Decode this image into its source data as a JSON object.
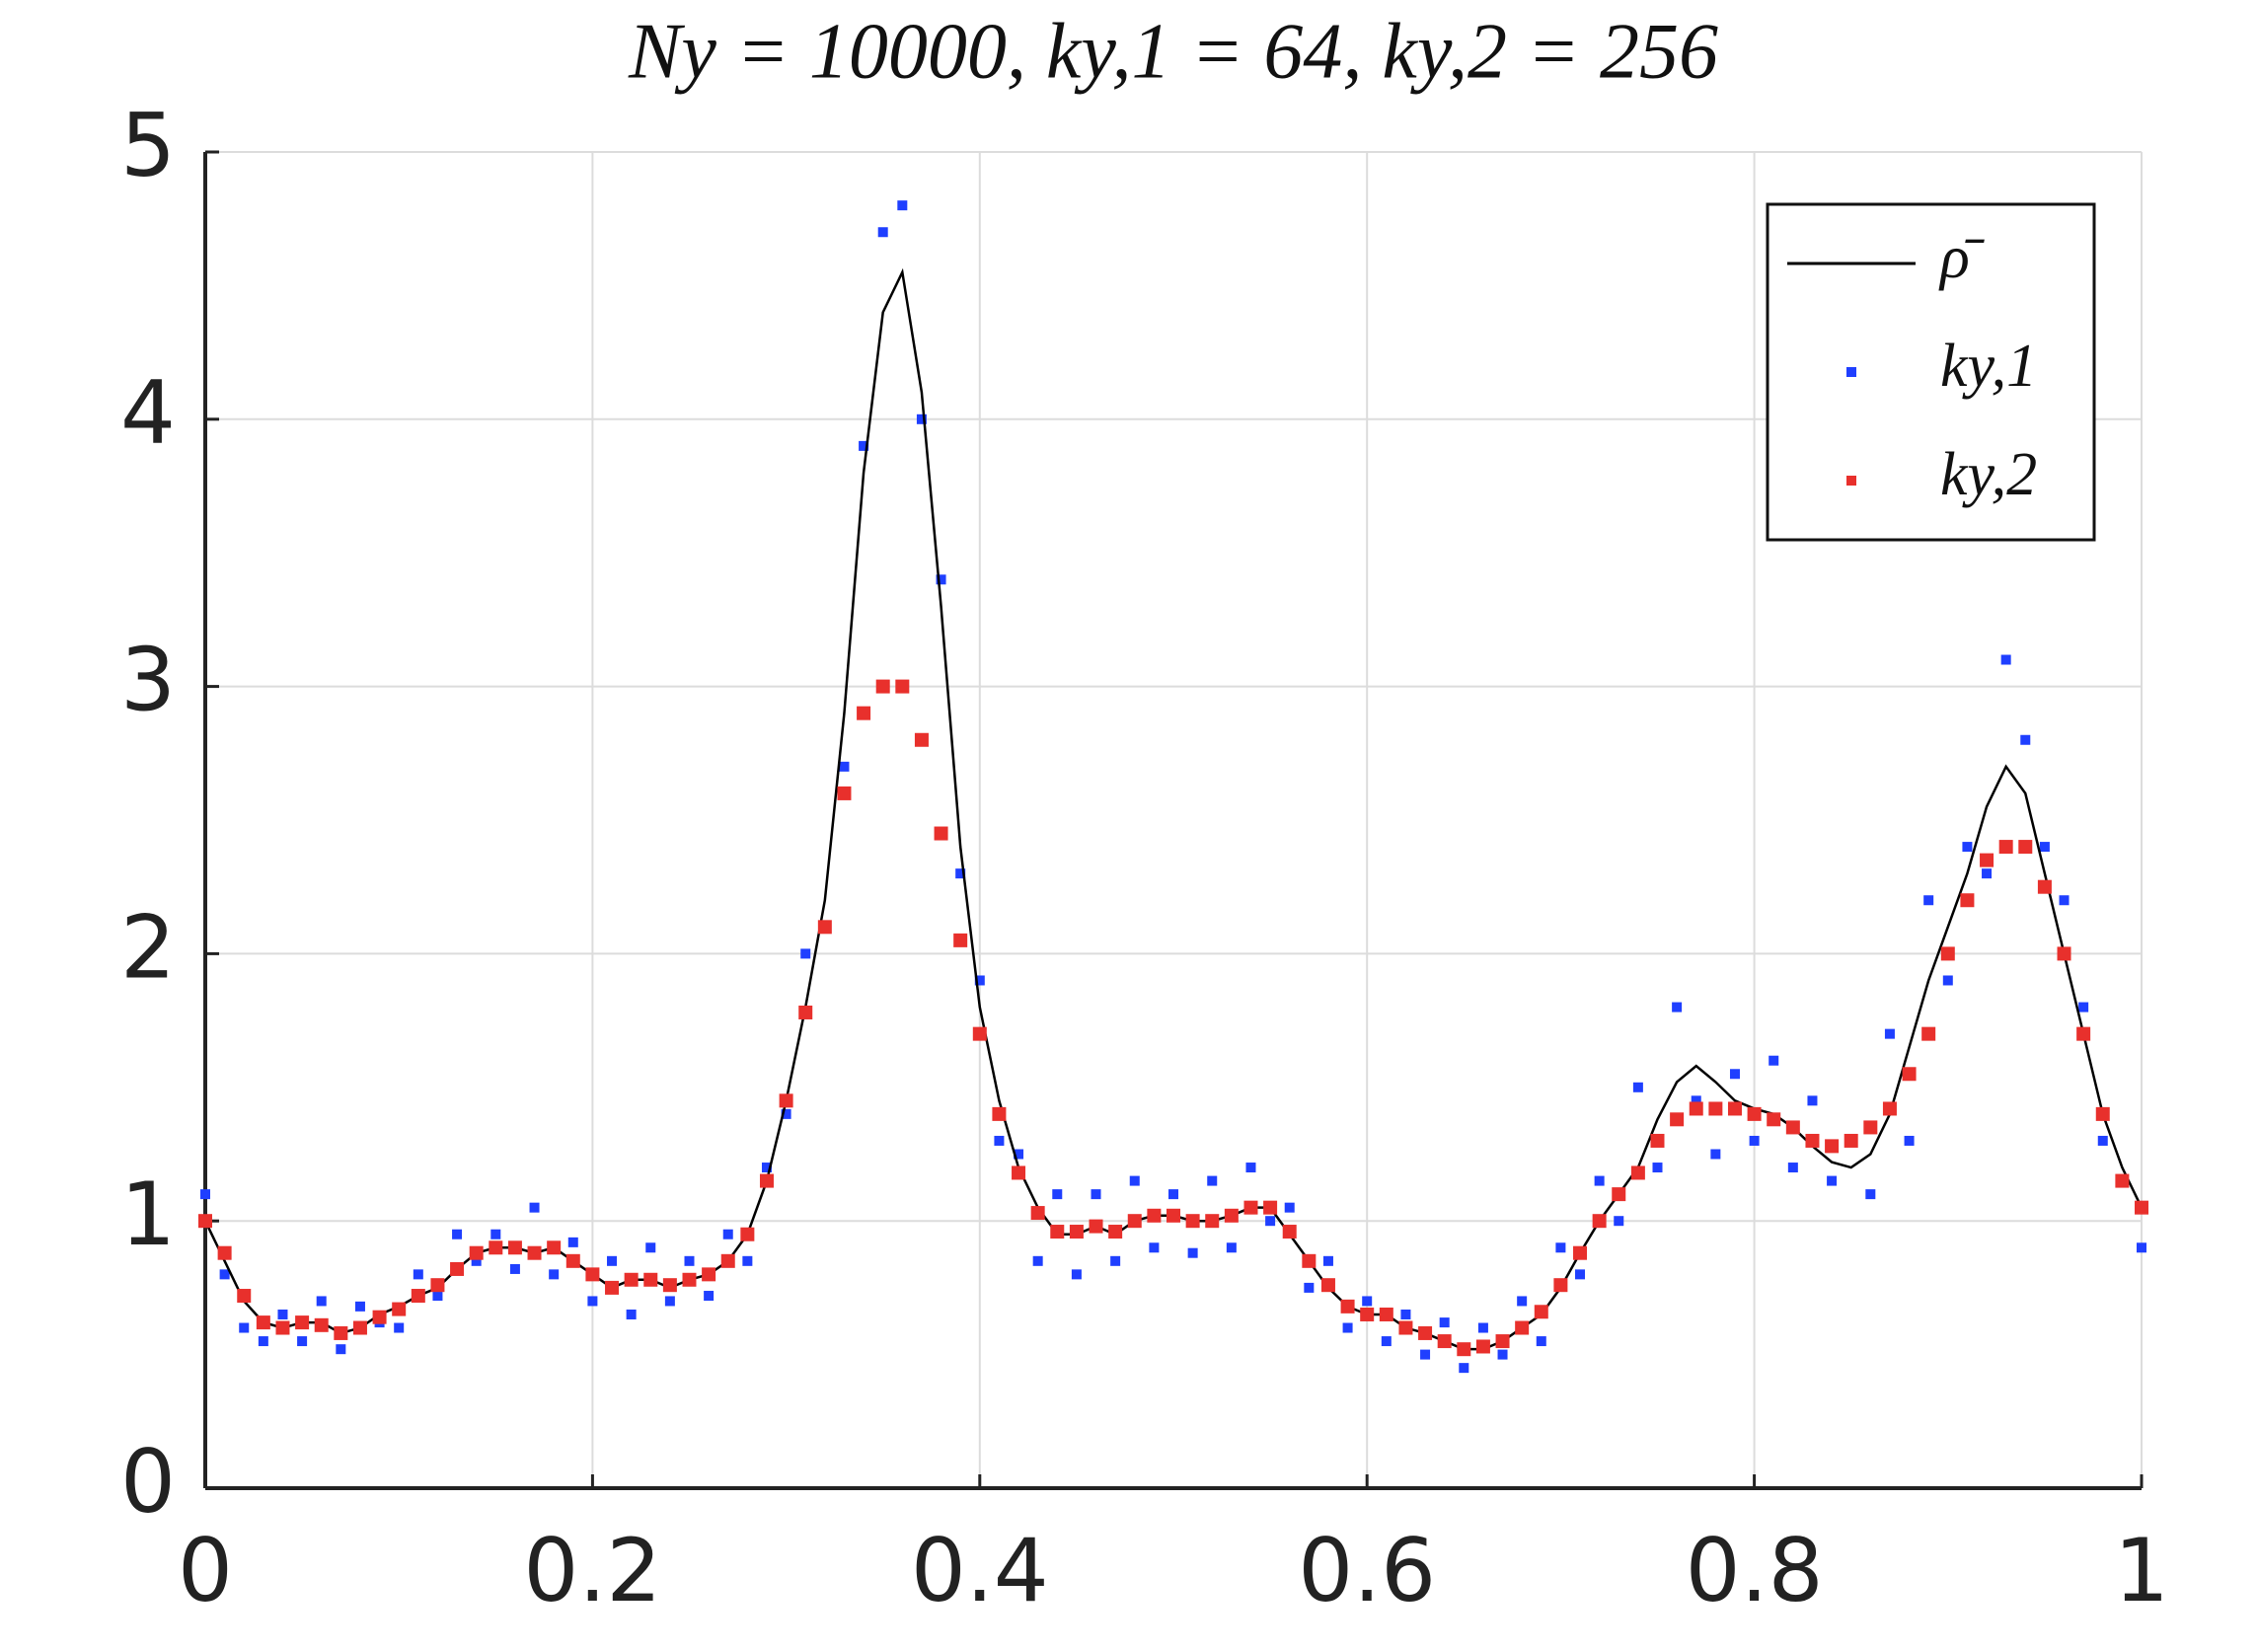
{
  "chart_data": {
    "type": "scatter",
    "title": "Ny = 10000, ky,1 = 64, ky,2 = 256",
    "x": [
      0,
      0.01,
      0.02,
      0.03,
      0.04,
      0.05,
      0.06,
      0.07,
      0.08,
      0.09,
      0.1,
      0.11,
      0.12,
      0.13,
      0.14,
      0.15,
      0.16,
      0.17,
      0.18,
      0.19,
      0.2,
      0.21,
      0.22,
      0.23,
      0.24,
      0.25,
      0.26,
      0.27,
      0.28,
      0.29,
      0.3,
      0.31,
      0.32,
      0.33,
      0.34,
      0.35,
      0.36,
      0.37,
      0.38,
      0.39,
      0.4,
      0.41,
      0.42,
      0.43,
      0.44,
      0.45,
      0.46,
      0.47,
      0.48,
      0.49,
      0.5,
      0.51,
      0.52,
      0.53,
      0.54,
      0.55,
      0.56,
      0.57,
      0.58,
      0.59,
      0.6,
      0.61,
      0.62,
      0.63,
      0.64,
      0.65,
      0.66,
      0.67,
      0.68,
      0.69,
      0.7,
      0.71,
      0.72,
      0.73,
      0.74,
      0.75,
      0.76,
      0.77,
      0.78,
      0.79,
      0.8,
      0.81,
      0.82,
      0.83,
      0.84,
      0.85,
      0.86,
      0.87,
      0.88,
      0.89,
      0.9,
      0.91,
      0.92,
      0.93,
      0.94,
      0.95,
      0.96,
      0.97,
      0.98,
      0.99,
      1
    ],
    "series": [
      {
        "name": "ρ̄",
        "color": "#000000",
        "style": "line",
        "values": [
          1.0,
          0.85,
          0.7,
          0.62,
          0.6,
          0.62,
          0.62,
          0.58,
          0.6,
          0.65,
          0.68,
          0.72,
          0.75,
          0.82,
          0.88,
          0.9,
          0.9,
          0.88,
          0.9,
          0.85,
          0.8,
          0.75,
          0.78,
          0.78,
          0.75,
          0.78,
          0.8,
          0.85,
          0.95,
          1.15,
          1.45,
          1.8,
          2.2,
          2.9,
          3.8,
          4.4,
          4.55,
          4.1,
          3.3,
          2.4,
          1.8,
          1.45,
          1.2,
          1.05,
          0.95,
          0.95,
          0.98,
          0.95,
          1.0,
          1.02,
          1.02,
          1.0,
          1.0,
          1.02,
          1.05,
          1.05,
          0.95,
          0.85,
          0.75,
          0.68,
          0.65,
          0.65,
          0.6,
          0.58,
          0.55,
          0.52,
          0.52,
          0.55,
          0.6,
          0.65,
          0.75,
          0.88,
          1.0,
          1.1,
          1.2,
          1.38,
          1.52,
          1.58,
          1.52,
          1.45,
          1.42,
          1.4,
          1.35,
          1.28,
          1.22,
          1.2,
          1.25,
          1.4,
          1.65,
          1.9,
          2.1,
          2.3,
          2.55,
          2.7,
          2.6,
          2.3,
          2.0,
          1.7,
          1.4,
          1.2,
          1.05
        ]
      },
      {
        "name": "ky,1",
        "color": "#1f3fff",
        "style": "points",
        "values": [
          1.1,
          0.8,
          0.6,
          0.55,
          0.65,
          0.55,
          0.7,
          0.52,
          0.68,
          0.62,
          0.6,
          0.8,
          0.72,
          0.95,
          0.85,
          0.95,
          0.82,
          1.05,
          0.8,
          0.92,
          0.7,
          0.85,
          0.65,
          0.9,
          0.7,
          0.85,
          0.72,
          0.95,
          0.85,
          1.2,
          1.4,
          2.0,
          2.1,
          2.7,
          3.9,
          4.7,
          4.8,
          4.0,
          3.4,
          2.3,
          1.9,
          1.3,
          1.25,
          0.85,
          1.1,
          0.8,
          1.1,
          0.85,
          1.15,
          0.9,
          1.1,
          0.88,
          1.15,
          0.9,
          1.2,
          1.0,
          1.05,
          0.75,
          0.85,
          0.6,
          0.7,
          0.55,
          0.65,
          0.5,
          0.62,
          0.45,
          0.6,
          0.5,
          0.7,
          0.55,
          0.9,
          0.8,
          1.15,
          1.0,
          1.5,
          1.2,
          1.8,
          1.45,
          1.25,
          1.55,
          1.3,
          1.6,
          1.2,
          1.45,
          1.15,
          1.3,
          1.1,
          1.7,
          1.3,
          2.2,
          1.9,
          2.4,
          2.3,
          3.1,
          2.8,
          2.4,
          2.2,
          1.8,
          1.3,
          1.15,
          0.9
        ]
      },
      {
        "name": "ky,2",
        "color": "#e8302c",
        "style": "points",
        "values": [
          1.0,
          0.88,
          0.72,
          0.62,
          0.6,
          0.62,
          0.61,
          0.58,
          0.6,
          0.64,
          0.67,
          0.72,
          0.76,
          0.82,
          0.88,
          0.9,
          0.9,
          0.88,
          0.9,
          0.85,
          0.8,
          0.75,
          0.78,
          0.78,
          0.76,
          0.78,
          0.8,
          0.85,
          0.95,
          1.15,
          1.45,
          1.78,
          2.1,
          2.6,
          2.9,
          3.0,
          3.0,
          2.8,
          2.45,
          2.05,
          1.7,
          1.4,
          1.18,
          1.03,
          0.96,
          0.96,
          0.98,
          0.96,
          1.0,
          1.02,
          1.02,
          1.0,
          1.0,
          1.02,
          1.05,
          1.05,
          0.96,
          0.85,
          0.76,
          0.68,
          0.65,
          0.65,
          0.6,
          0.58,
          0.55,
          0.52,
          0.53,
          0.55,
          0.6,
          0.66,
          0.76,
          0.88,
          1.0,
          1.1,
          1.18,
          1.3,
          1.38,
          1.42,
          1.42,
          1.42,
          1.4,
          1.38,
          1.35,
          1.3,
          1.28,
          1.3,
          1.35,
          1.42,
          1.55,
          1.7,
          2.0,
          2.2,
          2.35,
          2.4,
          2.4,
          2.25,
          2.0,
          1.7,
          1.4,
          1.15,
          1.05
        ]
      }
    ],
    "xlim": [
      0,
      1
    ],
    "xticks": [
      0,
      0.2,
      0.4,
      0.6,
      0.8,
      1
    ],
    "ylim": [
      0,
      5
    ],
    "yticks": [
      0,
      1,
      2,
      3,
      4,
      5
    ],
    "grid": true,
    "legend": "upper right"
  }
}
